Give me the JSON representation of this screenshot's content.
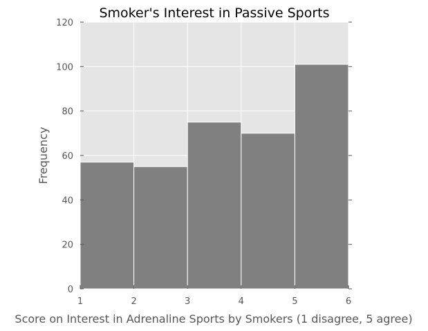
{
  "chart_data": {
    "type": "bar",
    "title": "Smoker's Interest in Passive Sports",
    "xlabel": "Score on Interest in Adrenaline Sports by Smokers (1 disagree, 5 agree)",
    "ylabel": "Frequency",
    "bin_edges": [
      1,
      2,
      3,
      4,
      5,
      6
    ],
    "values": [
      57,
      55,
      75,
      70,
      101
    ],
    "xlim": [
      1,
      6
    ],
    "ylim": [
      0,
      120
    ],
    "xticks": [
      1,
      2,
      3,
      4,
      5,
      6
    ],
    "yticks": [
      0,
      20,
      40,
      60,
      80,
      100,
      120
    ],
    "grid": true,
    "colors": {
      "bar": "#808080",
      "bar_edge": "#ffffff",
      "plot_background": "#e5e5e5",
      "grid": "#ffffff",
      "tick": "#555555"
    }
  }
}
